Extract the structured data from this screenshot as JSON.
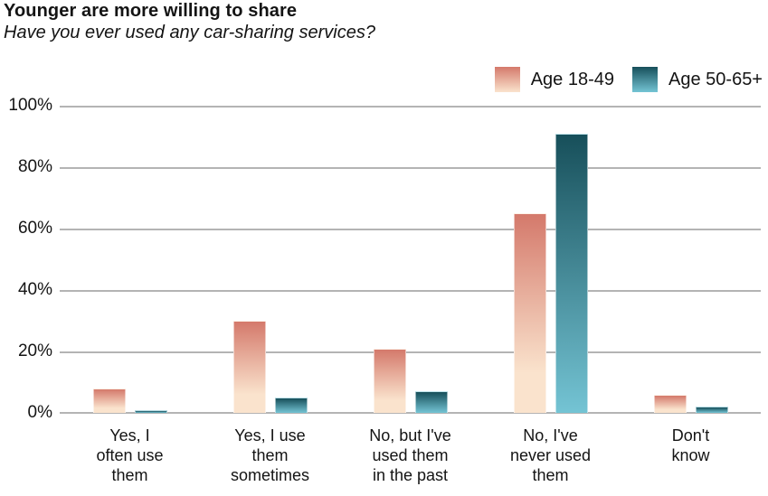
{
  "header": {
    "title": "Younger are more willing to share",
    "subtitle": "Have you ever used any car-sharing services?"
  },
  "legend": {
    "items": [
      {
        "label": "Age 18-49"
      },
      {
        "label": "Age 50-65+"
      }
    ]
  },
  "colors": {
    "grid": "#b4b4b4",
    "text": "#141414",
    "pink_top": "#d4796b",
    "pink_bottom": "#fae3cd",
    "teal_top": "#174f5a",
    "teal_bottom": "#74c4d4"
  },
  "chart_data": {
    "type": "bar",
    "title": "Younger are more willing to share",
    "subtitle": "Have you ever used any car-sharing services?",
    "categories": [
      "Yes, I often use them",
      "Yes, I use them sometimes",
      "No, but I've used them in the past",
      "No, I've never used them",
      "Don't know"
    ],
    "categories_multiline": [
      "Yes, I\noften use\nthem",
      "Yes, I use\nthem\nsometimes",
      "No, but I've\nused them\nin the past",
      "No, I've\nnever used\nthem",
      "Don't\nknow"
    ],
    "series": [
      {
        "name": "Age 18-49",
        "values": [
          8,
          30,
          21,
          65,
          6
        ],
        "gradient": [
          "#d4796b",
          "#fae3cd"
        ],
        "gradient_light_stop": "80%"
      },
      {
        "name": "Age 50-65+",
        "values": [
          1,
          5,
          7,
          91,
          2
        ],
        "gradient": [
          "#174f5a",
          "#74c4d4"
        ],
        "gradient_light_stop": "100%"
      }
    ],
    "ylabel": "",
    "xlabel": "",
    "ylim": [
      0,
      100
    ],
    "yticks": [
      "0%",
      "20%",
      "40%",
      "60%",
      "80%",
      "100%"
    ],
    "grid": true,
    "legend_position": "top-right"
  }
}
